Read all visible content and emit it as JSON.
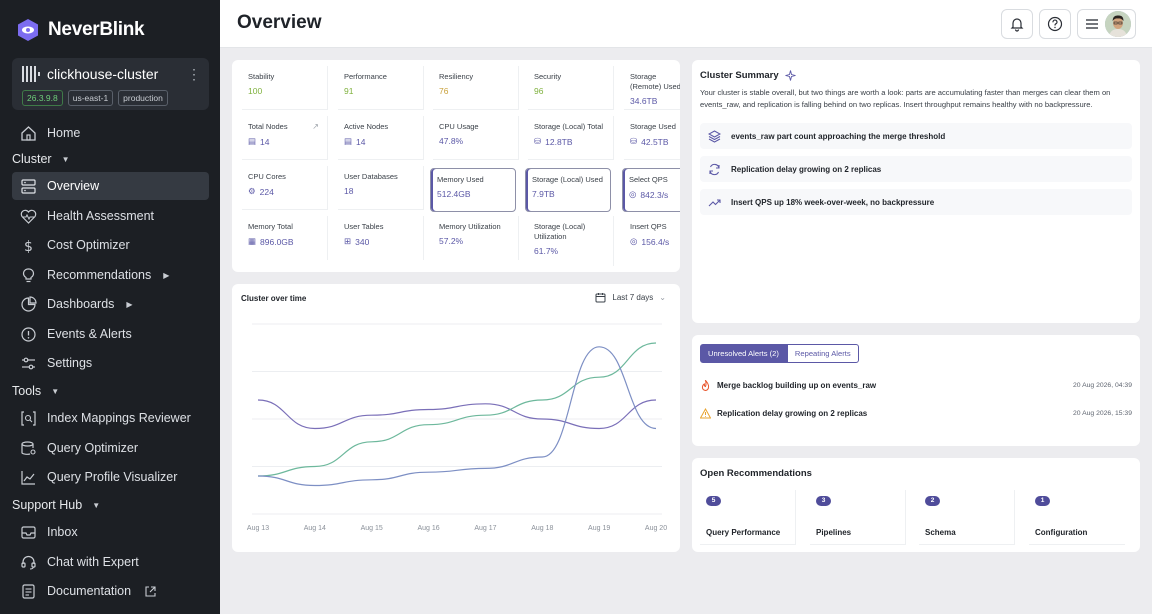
{
  "brand": {
    "name": "NeverBlink",
    "accent": "#7c6cf0"
  },
  "cluster": {
    "name": "clickhouse-cluster",
    "tags": [
      "26.3.9.8",
      "us-east-1",
      "production"
    ]
  },
  "sidebar": {
    "home": "Home",
    "cluster_section": "Cluster",
    "cluster_items": [
      {
        "label": "Overview",
        "icon": "server-icon",
        "active": true
      },
      {
        "label": "Health Assessment",
        "icon": "heart-pulse-icon"
      },
      {
        "label": "Cost Optimizer",
        "icon": "dollar-icon"
      },
      {
        "label": "Recommendations",
        "icon": "lightbulb-icon",
        "expandable": true
      },
      {
        "label": "Dashboards",
        "icon": "chart-icon",
        "expandable": true
      },
      {
        "label": "Events & Alerts",
        "icon": "alert-circle-icon"
      },
      {
        "label": "Settings",
        "icon": "sliders-icon"
      }
    ],
    "tools_section": "Tools",
    "tools_items": [
      {
        "label": "Index Mappings Reviewer",
        "icon": "brackets-search-icon"
      },
      {
        "label": "Query Optimizer",
        "icon": "database-gear-icon"
      },
      {
        "label": "Query Profile Visualizer",
        "icon": "line-chart-icon"
      }
    ],
    "support_section": "Support Hub",
    "support_items": [
      {
        "label": "Inbox",
        "icon": "inbox-icon"
      },
      {
        "label": "Chat with Expert",
        "icon": "headset-icon"
      },
      {
        "label": "Documentation",
        "icon": "document-icon"
      }
    ]
  },
  "header": {
    "title": "Overview"
  },
  "metrics": {
    "row1": [
      {
        "label": "Stability",
        "value": "100",
        "tone": "good"
      },
      {
        "label": "Performance",
        "value": "91",
        "tone": "good"
      },
      {
        "label": "Resiliency",
        "value": "76",
        "tone": "warn"
      },
      {
        "label": "Security",
        "value": "96",
        "tone": "good"
      },
      {
        "label": "Storage (Remote) Used",
        "value": "34.6TB"
      }
    ],
    "row2": [
      {
        "label": "Total Nodes",
        "value": "14"
      },
      {
        "label": "Active Nodes",
        "value": "14"
      },
      {
        "label": "CPU Usage",
        "value": "47.8%"
      },
      {
        "label": "Storage (Local) Total",
        "value": "12.8TB"
      },
      {
        "label": "Storage Used",
        "value": "42.5TB"
      }
    ],
    "row3": [
      {
        "label": "CPU Cores",
        "value": "224"
      },
      {
        "label": "User Databases",
        "value": "18"
      },
      {
        "label": "Memory Used",
        "value": "512.4GB"
      },
      {
        "label": "Storage (Local) Used",
        "value": "7.9TB"
      },
      {
        "label": "Select QPS",
        "value": "842.3/s"
      }
    ],
    "row4": [
      {
        "label": "Memory Total",
        "value": "896.0GB"
      },
      {
        "label": "User Tables",
        "value": "340"
      },
      {
        "label": "Memory Utilization",
        "value": "57.2%"
      },
      {
        "label": "Storage (Local) Utilization",
        "value": "61.7%"
      },
      {
        "label": "Insert QPS",
        "value": "156.4/s"
      }
    ]
  },
  "chart": {
    "title": "Cluster over time",
    "range": "Last 7 days"
  },
  "chart_data": {
    "type": "line",
    "title": "Cluster over time",
    "x": [
      "Aug 13",
      "Aug 14",
      "Aug 15",
      "Aug 16",
      "Aug 17",
      "Aug 18",
      "Aug 19",
      "Aug 20"
    ],
    "ylim": [
      0,
      100
    ],
    "grid": true,
    "series": [
      {
        "color": "#7a6fb8",
        "values": [
          60,
          45,
          52,
          55,
          58,
          50,
          45,
          60
        ]
      },
      {
        "color": "#6db89c",
        "values": [
          20,
          25,
          38,
          47,
          52,
          60,
          72,
          90
        ]
      },
      {
        "color": "#7d8fc4",
        "values": [
          20,
          15,
          18,
          22,
          24,
          30,
          88,
          45
        ]
      }
    ]
  },
  "summary": {
    "title": "Cluster Summary",
    "text": "Your cluster is stable overall, but two things are worth a look: parts are accumulating faster than merges can clear them on events_raw, and replication is falling behind on two replicas. Insert throughput remains healthy with no backpressure.",
    "insights": [
      {
        "icon": "layers-icon",
        "text": "events_raw part count approaching the merge threshold"
      },
      {
        "icon": "refresh-icon",
        "text": "Replication delay growing on 2 replicas"
      },
      {
        "icon": "trend-up-icon",
        "text": "Insert QPS up 18% week-over-week, no backpressure"
      }
    ]
  },
  "alerts": {
    "tabs": [
      "Unresolved Alerts (2)",
      "Repeating Alerts"
    ],
    "items": [
      {
        "icon": "fire-icon",
        "text": "Merge backlog building up on events_raw",
        "time": "20 Aug 2026, 04:39",
        "color": "#e8562e"
      },
      {
        "icon": "warning-icon",
        "text": "Replication delay growing on 2 replicas",
        "time": "20 Aug 2026, 15:39",
        "color": "#e8a32e"
      }
    ]
  },
  "recommendations": {
    "title": "Open Recommendations",
    "items": [
      {
        "count": "5",
        "label": "Query Performance"
      },
      {
        "count": "3",
        "label": "Pipelines"
      },
      {
        "count": "2",
        "label": "Schema"
      },
      {
        "count": "1",
        "label": "Configuration"
      }
    ]
  }
}
